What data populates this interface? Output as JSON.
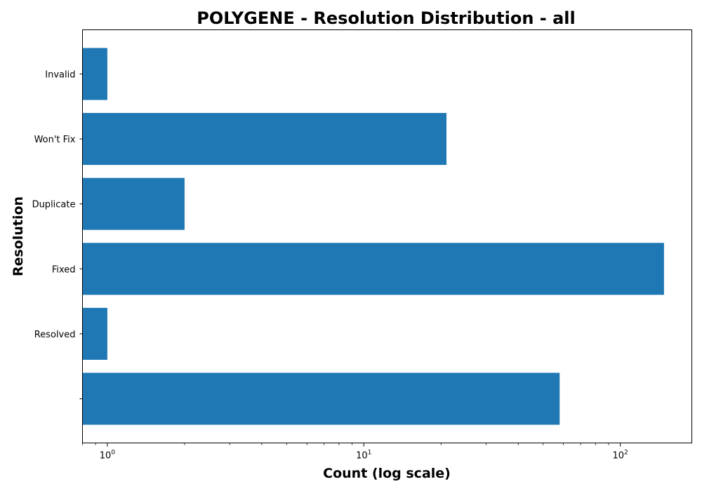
{
  "chart_data": {
    "type": "bar",
    "orientation": "horizontal",
    "title": "POLYGENE - Resolution Distribution - all",
    "xlabel": "Count (log scale)",
    "ylabel": "Resolution",
    "x_scale": "log",
    "xlim": [
      0.8,
      190
    ],
    "x_major_ticks": [
      {
        "value": 1,
        "base": "10",
        "exp": "0"
      },
      {
        "value": 10,
        "base": "10",
        "exp": "1"
      },
      {
        "value": 100,
        "base": "10",
        "exp": "2"
      }
    ],
    "categories": [
      "",
      "Resolved",
      "Fixed",
      "Duplicate",
      "Won't Fix",
      "Invalid"
    ],
    "values": [
      58,
      1,
      148,
      2,
      21,
      1
    ],
    "bar_color": "#1f77b4",
    "grid": false
  }
}
